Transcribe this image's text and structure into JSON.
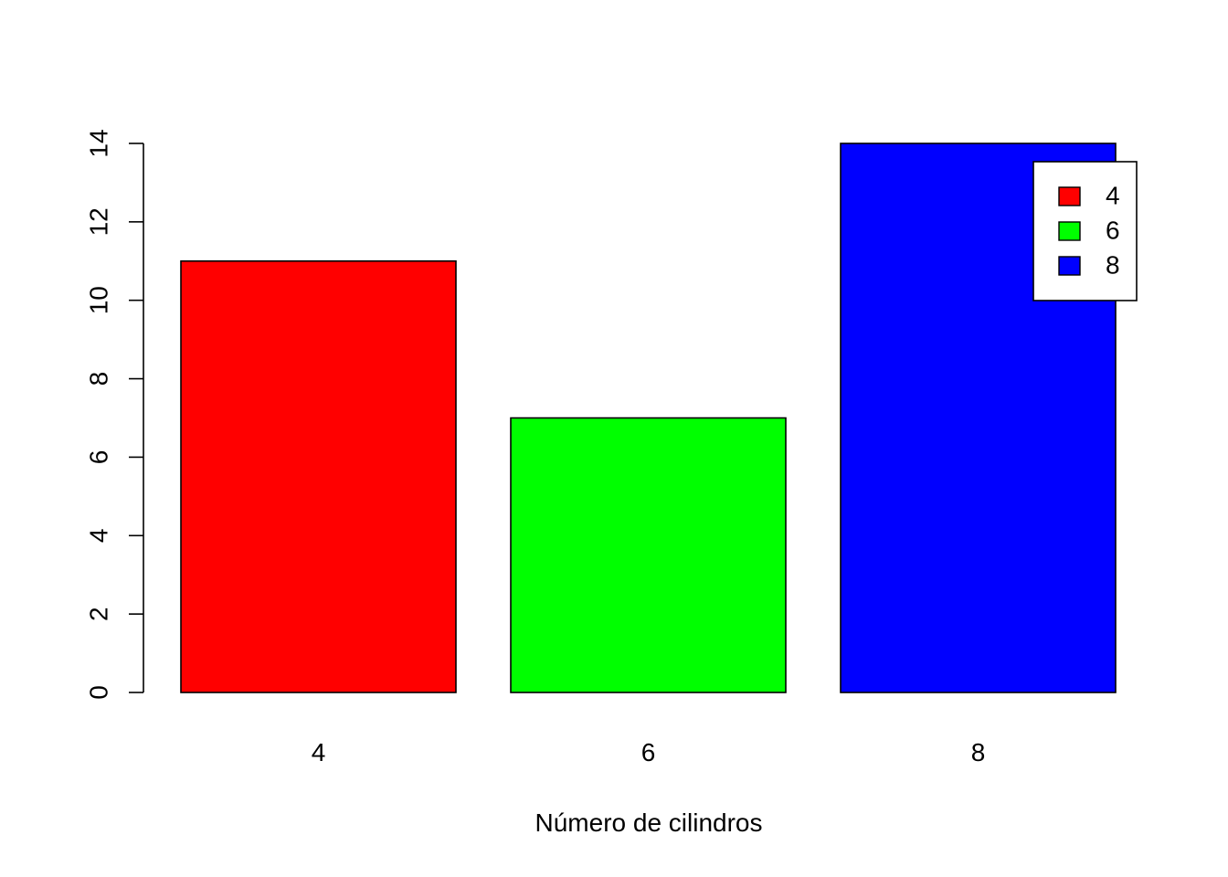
{
  "chart_data": {
    "type": "bar",
    "title": "",
    "xlabel": "Número de cilindros",
    "ylabel": "",
    "categories": [
      "4",
      "6",
      "8"
    ],
    "values": [
      11,
      7,
      14
    ],
    "colors": [
      "#ff0000",
      "#00ff00",
      "#0000ff"
    ],
    "ylim": [
      0,
      14
    ],
    "yticks": [
      "0",
      "2",
      "4",
      "6",
      "8",
      "10",
      "12",
      "14"
    ],
    "grid": false,
    "legend": {
      "position": "top-right",
      "entries": [
        {
          "label": "4",
          "color": "#ff0000"
        },
        {
          "label": "6",
          "color": "#00ff00"
        },
        {
          "label": "8",
          "color": "#0000ff"
        }
      ]
    }
  }
}
